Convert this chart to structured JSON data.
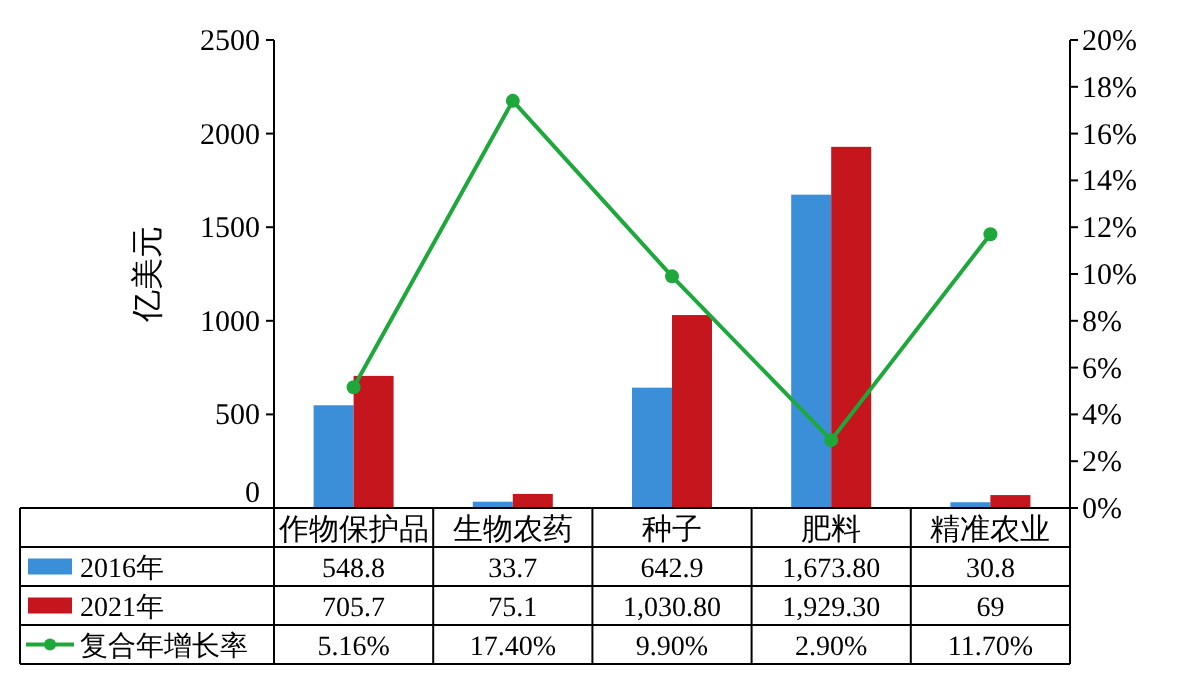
{
  "chart_data": {
    "type": "bar",
    "ylabel": "亿美元",
    "categories": [
      "作物保护品",
      "生物农药",
      "种子",
      "肥料",
      "精准农业"
    ],
    "series": [
      {
        "name": "2016年",
        "color": "#3b8fd8",
        "values": [
          548.8,
          33.7,
          642.9,
          1673.8,
          30.8
        ],
        "value_labels": [
          "548.8",
          "33.7",
          "642.9",
          "1,673.80",
          "30.8"
        ]
      },
      {
        "name": "2021年",
        "color": "#c4161c",
        "values": [
          705.7,
          75.1,
          1030.8,
          1929.3,
          69
        ],
        "value_labels": [
          "705.7",
          "75.1",
          "1,030.80",
          "1,929.30",
          "69"
        ]
      },
      {
        "name": "复合年增长率",
        "type": "line",
        "axis": "y2",
        "color": "#1ea83c",
        "marker": "circle",
        "values": [
          5.16,
          17.4,
          9.9,
          2.9,
          11.7
        ],
        "value_labels": [
          "5.16%",
          "17.40%",
          "9.90%",
          "2.90%",
          "11.70%"
        ]
      }
    ],
    "ylim": [
      0,
      2500
    ],
    "yticks": [
      0,
      500,
      1000,
      1500,
      2000,
      2500
    ],
    "y2lim": [
      0,
      20
    ],
    "y2ticks": [
      {
        "value": 0,
        "label": "0%"
      },
      {
        "value": 2,
        "label": "2%"
      },
      {
        "value": 4,
        "label": "4%"
      },
      {
        "value": 6,
        "label": "6%"
      },
      {
        "value": 8,
        "label": "8%"
      },
      {
        "value": 10,
        "label": "10%"
      },
      {
        "value": 12,
        "label": "12%"
      },
      {
        "value": 14,
        "label": "14%"
      },
      {
        "value": 16,
        "label": "16%"
      },
      {
        "value": 18,
        "label": "18%"
      },
      {
        "value": 20,
        "label": "20%"
      }
    ],
    "legend": "bottom"
  }
}
